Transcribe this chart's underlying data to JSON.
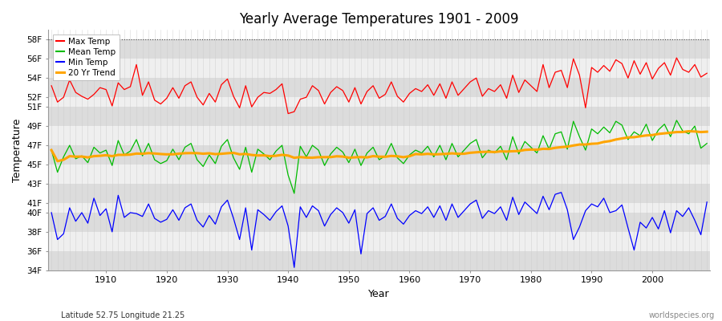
{
  "title": "Yearly Average Temperatures 1901 - 2009",
  "xlabel": "Year",
  "ylabel": "Temperature",
  "bottom_left": "Latitude 52.75 Longitude 21.25",
  "bottom_right": "worldspecies.org",
  "ylim": [
    34,
    59
  ],
  "ytick_vals": [
    34,
    36,
    38,
    40,
    41,
    43,
    45,
    47,
    49,
    51,
    52,
    54,
    56,
    58
  ],
  "ytick_labels": [
    "34F",
    "36F",
    "38F",
    "40F",
    "41F",
    "43F",
    "45F",
    "47F",
    "49F",
    "51F",
    "52F",
    "54F",
    "56F",
    "58F"
  ],
  "year_start": 1901,
  "year_end": 2009,
  "colors": {
    "max": "#ff0000",
    "mean": "#00bb00",
    "min": "#0000ff",
    "trend": "#ffa500",
    "band_dark": "#dcdcdc",
    "band_light": "#efefef",
    "grid_v": "#c8c8c8",
    "grid_h": "#c8c8c8",
    "dotted": "#444444"
  },
  "legend": [
    "Max Temp",
    "Mean Temp",
    "Min Temp",
    "20 Yr Trend"
  ],
  "max_temps": [
    53.2,
    51.5,
    52.0,
    53.8,
    52.5,
    52.1,
    51.8,
    52.3,
    53.0,
    52.8,
    51.1,
    53.5,
    52.8,
    53.1,
    55.4,
    52.2,
    53.6,
    51.7,
    51.3,
    51.9,
    53.0,
    51.9,
    53.2,
    53.6,
    52.0,
    51.2,
    52.4,
    51.5,
    53.3,
    53.9,
    52.1,
    50.9,
    53.2,
    51.0,
    52.0,
    52.5,
    52.4,
    52.8,
    53.4,
    50.3,
    50.5,
    51.8,
    52.0,
    53.2,
    52.7,
    51.3,
    52.5,
    53.1,
    52.7,
    51.5,
    53.0,
    51.3,
    52.6,
    53.2,
    51.9,
    52.3,
    53.6,
    52.1,
    51.5,
    52.4,
    52.9,
    52.6,
    53.3,
    52.2,
    53.4,
    51.9,
    53.6,
    52.2,
    52.9,
    53.6,
    54.0,
    52.1,
    52.9,
    52.6,
    53.3,
    51.9,
    54.3,
    52.5,
    53.8,
    53.2,
    52.6,
    55.4,
    53.0,
    54.6,
    54.8,
    53.0,
    56.0,
    54.3,
    50.9,
    55.1,
    54.6,
    55.3,
    54.7,
    55.9,
    55.5,
    54.0,
    55.8,
    54.4,
    55.6,
    53.9,
    55.0,
    55.6,
    54.3,
    56.1,
    54.9,
    54.6,
    55.4,
    54.1,
    54.5
  ],
  "mean_temps": [
    46.5,
    44.2,
    45.8,
    47.0,
    45.6,
    45.9,
    45.2,
    46.8,
    46.2,
    46.5,
    44.9,
    47.5,
    46.0,
    46.4,
    47.6,
    45.9,
    47.2,
    45.5,
    45.1,
    45.4,
    46.6,
    45.5,
    46.8,
    47.2,
    45.5,
    44.8,
    46.0,
    45.1,
    46.9,
    47.6,
    45.7,
    44.5,
    46.8,
    44.2,
    46.6,
    46.1,
    45.5,
    46.4,
    47.0,
    43.9,
    42.0,
    46.9,
    45.8,
    47.0,
    46.5,
    44.9,
    46.1,
    46.8,
    46.3,
    45.2,
    46.6,
    44.9,
    46.2,
    46.8,
    45.5,
    45.9,
    47.2,
    45.7,
    45.1,
    46.0,
    46.5,
    46.2,
    46.9,
    45.8,
    47.0,
    45.5,
    47.2,
    45.8,
    46.5,
    47.2,
    47.6,
    45.7,
    46.5,
    46.2,
    46.9,
    45.5,
    47.9,
    46.1,
    47.4,
    46.8,
    46.2,
    48.0,
    46.6,
    48.2,
    48.4,
    46.6,
    49.5,
    47.9,
    46.5,
    48.7,
    48.2,
    48.9,
    48.3,
    49.5,
    49.1,
    47.6,
    48.4,
    48.0,
    49.2,
    47.5,
    48.6,
    49.2,
    47.9,
    49.6,
    48.5,
    48.2,
    49.0,
    46.7,
    47.2
  ],
  "min_temps": [
    40.0,
    37.2,
    37.8,
    40.5,
    39.1,
    40.0,
    38.9,
    41.5,
    39.7,
    40.4,
    38.0,
    41.8,
    39.5,
    40.0,
    39.9,
    39.6,
    40.9,
    39.4,
    39.0,
    39.3,
    40.3,
    39.2,
    40.5,
    40.9,
    39.2,
    38.5,
    39.7,
    38.8,
    40.6,
    41.3,
    39.4,
    37.2,
    40.5,
    36.1,
    40.3,
    39.8,
    39.2,
    40.1,
    40.7,
    38.6,
    34.3,
    40.6,
    39.5,
    40.7,
    40.2,
    38.6,
    39.8,
    40.5,
    40.0,
    38.9,
    40.3,
    35.7,
    39.9,
    40.5,
    39.2,
    39.6,
    40.9,
    39.4,
    38.8,
    39.7,
    40.2,
    39.9,
    40.6,
    39.5,
    40.7,
    39.2,
    40.9,
    39.5,
    40.2,
    40.9,
    41.3,
    39.4,
    40.2,
    39.9,
    40.6,
    39.2,
    41.6,
    39.8,
    41.1,
    40.5,
    39.9,
    41.7,
    40.3,
    41.9,
    42.1,
    40.3,
    37.2,
    38.5,
    40.2,
    40.9,
    40.6,
    41.5,
    40.0,
    40.2,
    40.8,
    38.4,
    36.1,
    39.0,
    38.4,
    39.5,
    38.3,
    40.2,
    37.9,
    40.2,
    39.6,
    40.5,
    39.2,
    37.7,
    41.1
  ]
}
